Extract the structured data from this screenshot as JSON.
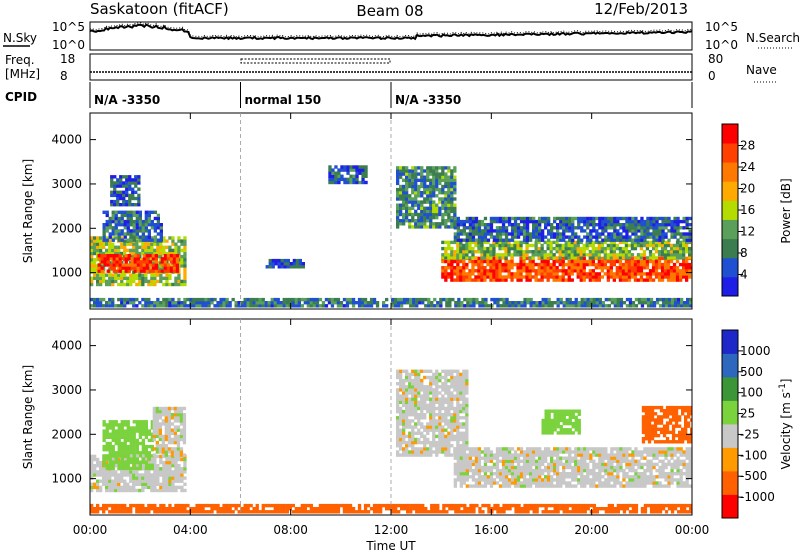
{
  "header": {
    "station": "Saskatoon (fitACF)",
    "beam": "Beam 08",
    "date": "12/Feb/2013"
  },
  "noise_panel": {
    "left_label": "N.Sky",
    "right_label": "N.Search",
    "left_ticks": [
      "10^5",
      "10^0"
    ],
    "right_ticks": [
      "10^5",
      "10^0"
    ]
  },
  "freq_panel": {
    "left_label_1": "Freq.",
    "left_label_2": "[MHz]",
    "right_label": "Nave",
    "left_ticks": [
      "18",
      "8"
    ],
    "right_ticks": [
      "80",
      "0"
    ]
  },
  "cpid": {
    "label": "CPID",
    "segments": [
      {
        "start_hour": 0,
        "end_hour": 6,
        "text": "N/A -3350"
      },
      {
        "start_hour": 6,
        "end_hour": 12,
        "text": "normal 150"
      },
      {
        "start_hour": 12,
        "end_hour": 24,
        "text": "N/A -3350"
      }
    ]
  },
  "colors": {
    "power": [
      "#1e1ee6",
      "#2050d2",
      "#3c7d50",
      "#5aa05a",
      "#b4dc00",
      "#ffaa00",
      "#ff7800",
      "#ff4000",
      "#ff0000"
    ],
    "velocity": [
      "#ff0000",
      "#ff6000",
      "#ff9a00",
      "#c8c8c8",
      "#7ad23c",
      "#3c9638",
      "#2e68be",
      "#1e28c8"
    ]
  },
  "chart_data": [
    {
      "type": "heatmap",
      "panel": "power",
      "ylabel": "Slant Range [km]",
      "xlabel": "Time UT",
      "x_ticks": [
        "00:00",
        "04:00",
        "08:00",
        "12:00",
        "16:00",
        "20:00",
        "00:00"
      ],
      "xlim_hours": [
        0,
        24
      ],
      "y_ticks": [
        1000,
        2000,
        3000,
        4000
      ],
      "ylim": [
        180,
        4600
      ],
      "colorbar": {
        "label": "Power [dB]",
        "ticks": [
          "4",
          "8",
          "12",
          "16",
          "20",
          "24",
          "28"
        ],
        "range": [
          0,
          30
        ]
      },
      "regions": [
        {
          "t0": 0.0,
          "t1": 3.8,
          "r0": 700,
          "r1": 1800,
          "value": 14
        },
        {
          "t0": 0.3,
          "t1": 3.5,
          "r0": 1000,
          "r1": 1400,
          "value": 26
        },
        {
          "t0": 0.5,
          "t1": 2.8,
          "r0": 1700,
          "r1": 2400,
          "value": 7
        },
        {
          "t0": 0.8,
          "t1": 2.0,
          "r0": 2500,
          "r1": 3200,
          "value": 5
        },
        {
          "t0": 7.0,
          "t1": 8.5,
          "r0": 1100,
          "r1": 1250,
          "value": 5
        },
        {
          "t0": 9.5,
          "t1": 11.0,
          "r0": 3000,
          "r1": 3400,
          "value": 6
        },
        {
          "t0": 12.2,
          "t1": 14.5,
          "r0": 2000,
          "r1": 3400,
          "value": 9
        },
        {
          "t0": 14.0,
          "t1": 24.0,
          "r0": 800,
          "r1": 1300,
          "value": 25
        },
        {
          "t0": 14.0,
          "t1": 24.0,
          "r0": 1300,
          "r1": 1700,
          "value": 13
        },
        {
          "t0": 14.5,
          "t1": 24.0,
          "r0": 1700,
          "r1": 2200,
          "value": 6
        },
        {
          "t0": 0.0,
          "t1": 24.0,
          "r0": 220,
          "r1": 420,
          "value": 8
        }
      ]
    },
    {
      "type": "heatmap",
      "panel": "velocity",
      "ylabel": "Slant Range [km]",
      "xlabel": "Time UT",
      "x_ticks": [
        "00:00",
        "04:00",
        "08:00",
        "12:00",
        "16:00",
        "20:00",
        "00:00"
      ],
      "xlim_hours": [
        0,
        24
      ],
      "y_ticks": [
        1000,
        2000,
        3000,
        4000
      ],
      "ylim": [
        180,
        4600
      ],
      "colorbar": {
        "label": "Velocity [m s^-1]",
        "ticks": [
          "1000",
          "500",
          "100",
          "25",
          "-25",
          "-100",
          "-500",
          "-1000"
        ]
      },
      "regions": [
        {
          "t0": 0.0,
          "t1": 3.8,
          "r0": 700,
          "r1": 1500,
          "value": 0
        },
        {
          "t0": 0.5,
          "t1": 2.5,
          "r0": 1200,
          "r1": 2300,
          "value": 60
        },
        {
          "t0": 2.5,
          "t1": 3.8,
          "r0": 1500,
          "r1": 2600,
          "value": 0
        },
        {
          "t0": 12.2,
          "t1": 15.0,
          "r0": 1500,
          "r1": 3400,
          "value": 0
        },
        {
          "t0": 14.5,
          "t1": 24.0,
          "r0": 800,
          "r1": 1700,
          "value": 0
        },
        {
          "t0": 18.0,
          "t1": 19.5,
          "r0": 2000,
          "r1": 2500,
          "value": 60
        },
        {
          "t0": 22.0,
          "t1": 24.0,
          "r0": 1800,
          "r1": 2600,
          "value": -200
        },
        {
          "t0": 0.0,
          "t1": 24.0,
          "r0": 220,
          "r1": 420,
          "value": -150
        }
      ]
    }
  ]
}
